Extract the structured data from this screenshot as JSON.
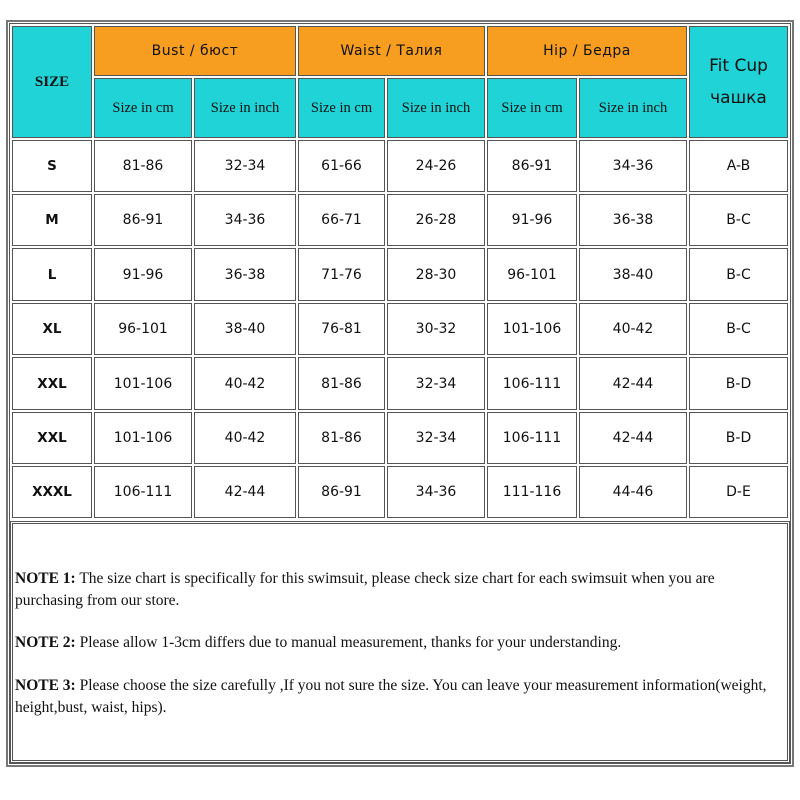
{
  "header": {
    "size_label": "SIZE",
    "groups": [
      {
        "label": "Bust / бюст"
      },
      {
        "label": "Waist / Талия"
      },
      {
        "label": "Hip / Бедра"
      }
    ],
    "fit_cup": {
      "line1": "Fit Cup",
      "line2": "чашка"
    },
    "sub_cm": "Size in cm",
    "sub_inch": "Size in inch"
  },
  "rows": [
    {
      "size": "S",
      "cells": [
        "81-86",
        "32-34",
        "61-66",
        "24-26",
        "86-91",
        "34-36",
        "A-B"
      ]
    },
    {
      "size": "M",
      "cells": [
        "86-91",
        "34-36",
        "66-71",
        "26-28",
        "91-96",
        "36-38",
        "B-C"
      ]
    },
    {
      "size": "L",
      "cells": [
        "91-96",
        "36-38",
        "71-76",
        "28-30",
        "96-101",
        "38-40",
        "B-C"
      ]
    },
    {
      "size": "XL",
      "cells": [
        "96-101",
        "38-40",
        "76-81",
        "30-32",
        "101-106",
        "40-42",
        "B-C"
      ]
    },
    {
      "size": "XXL",
      "cells": [
        "101-106",
        "40-42",
        "81-86",
        "32-34",
        "106-111",
        "42-44",
        "B-D"
      ]
    },
    {
      "size": "XXL",
      "cells": [
        "101-106",
        "40-42",
        "81-86",
        "32-34",
        "106-111",
        "42-44",
        "B-D"
      ]
    },
    {
      "size": "XXXL",
      "cells": [
        "106-111",
        "42-44",
        "86-91",
        "34-36",
        "111-116",
        "44-46",
        "D-E"
      ]
    }
  ],
  "notes": [
    {
      "label": "NOTE 1:",
      "text": " The size chart is specifically for this swimsuit, please check size chart for each swimsuit when you are purchasing from our store."
    },
    {
      "label": "NOTE 2:",
      "text": " Please allow 1-3cm differs due to manual measurement, thanks for your understanding."
    },
    {
      "label": "NOTE 3:",
      "text": " Please choose the size carefully ,If you not sure the size. You can leave your measurement information(weight, height,bust, waist, hips)."
    }
  ],
  "colors": {
    "header_cyan": "#1fd3d6",
    "header_orange": "#f79e21"
  }
}
